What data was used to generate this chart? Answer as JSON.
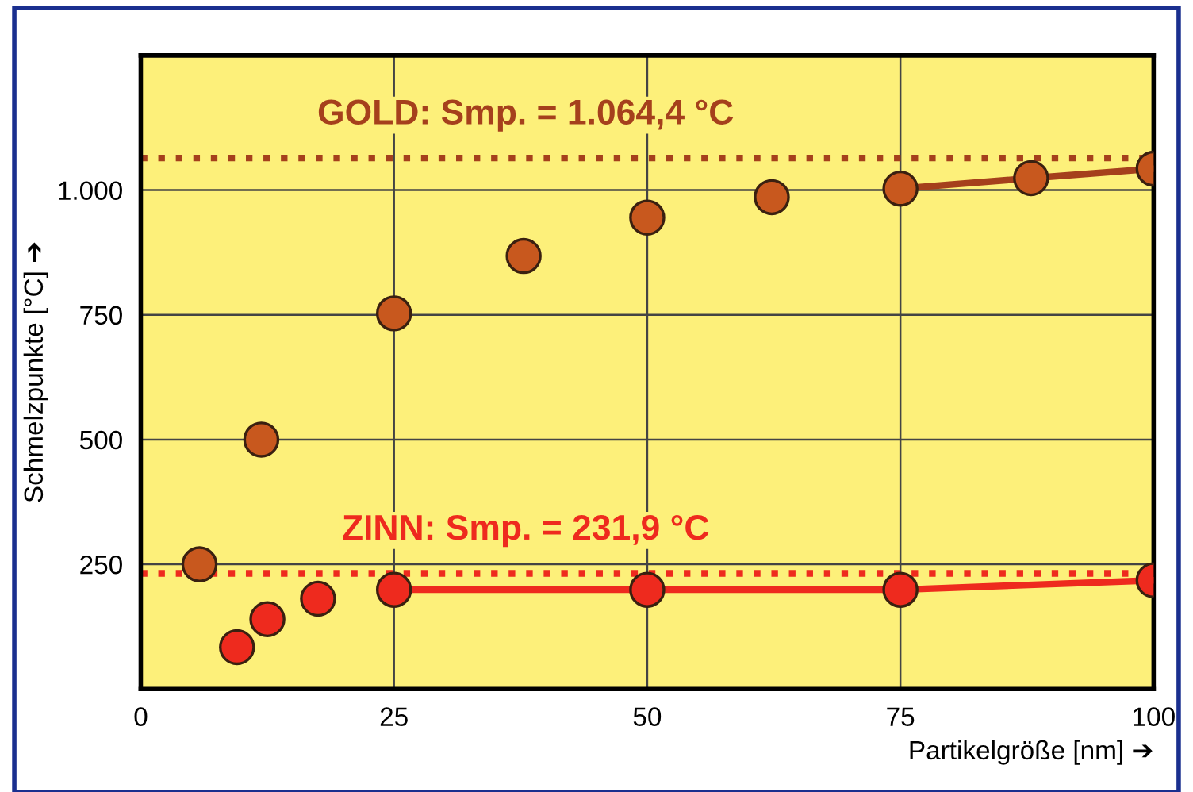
{
  "chart_data": {
    "type": "scatter",
    "xlabel": "Partikelgröße [nm] ➔",
    "ylabel": "Schmelzpunkte [°C] ➔",
    "xlim": [
      0,
      100
    ],
    "ylim": [
      0,
      1270
    ],
    "xticks": [
      0,
      25,
      50,
      75,
      100
    ],
    "yticks": [
      250,
      500,
      750,
      {
        "value": 1000,
        "label": "1.000"
      }
    ],
    "grid": true,
    "marker": "circle",
    "series": [
      {
        "type": "line",
        "color": "#a5401c",
        "marker": "none",
        "x": [
          75,
          87.9,
          100
        ],
        "values": [
          1003,
          1024,
          1043
        ]
      },
      {
        "type": "line",
        "color": "#ee2a1e",
        "marker": "none",
        "x": [
          25,
          50,
          75,
          100
        ],
        "values": [
          199,
          199,
          199,
          218
        ]
      },
      {
        "color": "#c8581e",
        "x": [
          5.8,
          11.9,
          25,
          37.8,
          50,
          62.3,
          75,
          87.9,
          100
        ],
        "values": [
          250,
          500,
          753,
          868,
          945,
          986,
          1003,
          1024,
          1043
        ]
      },
      {
        "color": "#ee2a1e",
        "x": [
          9.5,
          12.5,
          17.5,
          25,
          50,
          75,
          100
        ],
        "values": [
          84,
          140,
          181,
          199,
          199,
          199,
          218
        ]
      }
    ],
    "ref_lines": [
      {
        "axis": "y",
        "value": 1064.4,
        "label": "GOLD: Smp. = 1.064,4 °C",
        "color": "#a5401c",
        "line_style": "dotted"
      },
      {
        "axis": "y",
        "value": 231.9,
        "label": "ZINN: Smp. = 231,9 °C",
        "color": "#ee2a1e",
        "line_style": "dotted"
      }
    ]
  }
}
